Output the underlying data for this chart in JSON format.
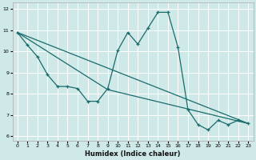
{
  "title": "",
  "xlabel": "Humidex (Indice chaleur)",
  "ylabel": "",
  "bg_color": "#cfe8e8",
  "line_color": "#1a6b6b",
  "grid_color": "#ffffff",
  "xlim": [
    -0.5,
    23.5
  ],
  "ylim": [
    5.8,
    12.3
  ],
  "xticks": [
    0,
    1,
    2,
    3,
    4,
    5,
    6,
    7,
    8,
    9,
    10,
    11,
    12,
    13,
    14,
    15,
    16,
    17,
    18,
    19,
    20,
    21,
    22,
    23
  ],
  "yticks": [
    6,
    7,
    8,
    9,
    10,
    11,
    12
  ],
  "curve1_x": [
    0,
    1,
    2,
    3,
    4,
    5,
    6,
    7,
    8,
    9,
    10,
    11,
    12,
    13,
    14,
    15,
    16,
    17,
    18,
    19,
    20,
    21,
    22,
    23
  ],
  "curve1_y": [
    10.9,
    10.3,
    9.75,
    8.9,
    8.35,
    8.35,
    8.25,
    7.65,
    7.65,
    8.25,
    10.05,
    10.9,
    10.35,
    11.1,
    11.85,
    11.85,
    10.2,
    7.25,
    6.55,
    6.3,
    6.75,
    6.55,
    6.75,
    6.6
  ],
  "curve2_x": [
    0,
    23
  ],
  "curve2_y": [
    10.9,
    6.6
  ],
  "curve3_x": [
    0,
    9,
    23
  ],
  "curve3_y": [
    10.9,
    8.2,
    6.6
  ]
}
